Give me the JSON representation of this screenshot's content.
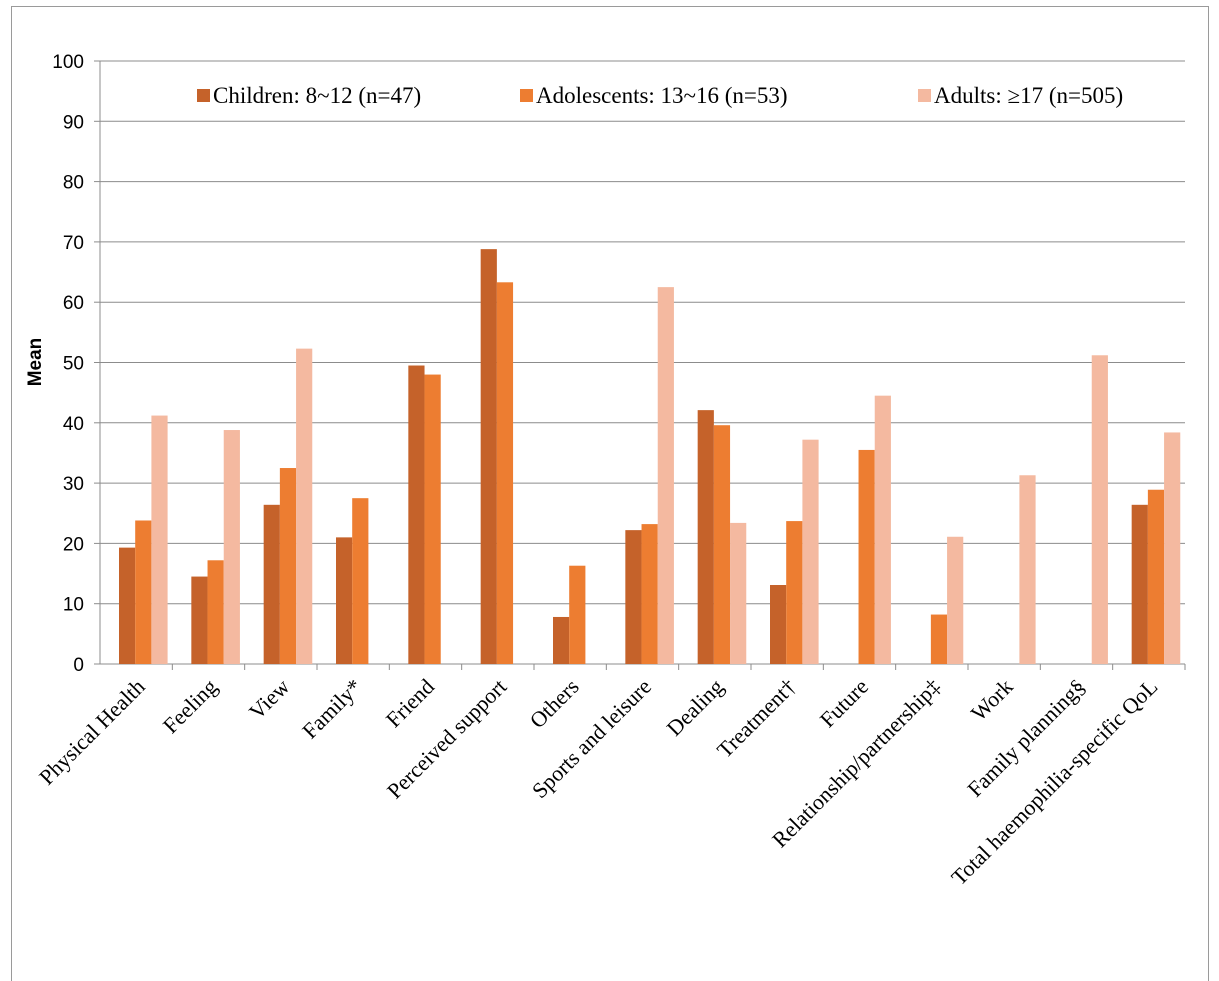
{
  "chart_data": {
    "type": "bar",
    "ylabel": "Mean",
    "ylim": [
      0,
      100
    ],
    "yticks": [
      0,
      10,
      20,
      30,
      40,
      50,
      60,
      70,
      80,
      90,
      100
    ],
    "grid": true,
    "legend_position": "top",
    "categories": [
      "Physical Health",
      "Feeling",
      "View",
      "Family*",
      "Friend",
      "Perceived support",
      "Others",
      "Sports and leisure",
      "Dealing",
      "Treatment†",
      "Future",
      "Relationship/partnership‡",
      "Work",
      "Family planning§",
      "Total haemophilia-specific QoL"
    ],
    "series": [
      {
        "name": "Children: 8~12 (n=47)",
        "color": "#c5622a",
        "values": [
          19.3,
          14.5,
          26.4,
          21.0,
          49.5,
          68.8,
          7.8,
          22.2,
          42.1,
          13.1,
          null,
          null,
          null,
          null,
          26.4
        ]
      },
      {
        "name": "Adolescents: 13~16 (n=53)",
        "color": "#ed7d31",
        "values": [
          23.8,
          17.2,
          32.5,
          27.5,
          48.0,
          63.3,
          16.3,
          23.2,
          39.6,
          23.7,
          35.5,
          8.2,
          null,
          null,
          28.9
        ]
      },
      {
        "name": "Adults: ≥17 (n=505)",
        "color": "#f4b9a0",
        "values": [
          41.2,
          38.8,
          52.3,
          null,
          null,
          null,
          null,
          62.5,
          23.4,
          37.2,
          44.5,
          21.1,
          31.3,
          51.2,
          38.4
        ]
      }
    ]
  }
}
